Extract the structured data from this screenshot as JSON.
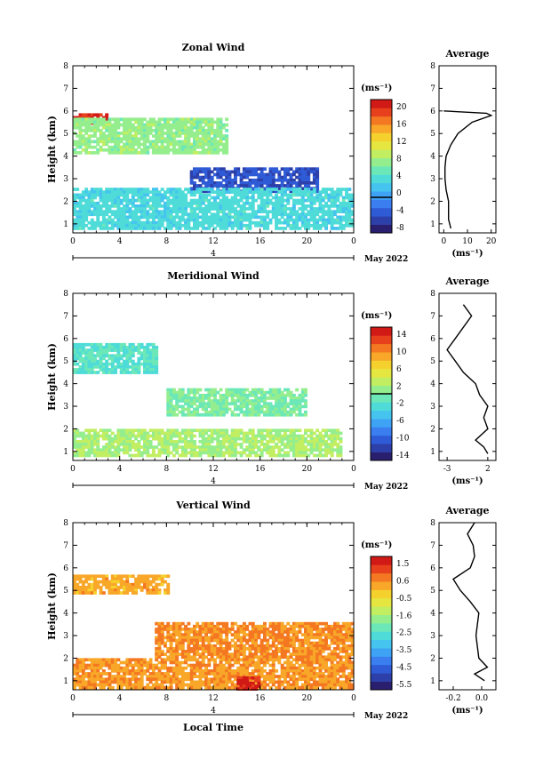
{
  "chart_data": [
    {
      "type": "heatmap",
      "title": "Zonal Wind",
      "ylabel": "Height (km)",
      "xlabel": "",
      "xlim": [
        0,
        24
      ],
      "ylim": [
        0.6,
        8
      ],
      "x_ticks": [
        "0",
        "4",
        "8",
        "12",
        "16",
        "20",
        "0"
      ],
      "y_ticks": [
        "1",
        "2",
        "3",
        "4",
        "5",
        "6",
        "7",
        "8"
      ],
      "date_axis": {
        "tick_label": "4",
        "label": "May 2022"
      },
      "colorbar": {
        "unit": "(ms⁻¹)",
        "min": -8,
        "max": 22,
        "zero_line": 0,
        "ticks": [
          "20",
          "16",
          "12",
          "8",
          "4",
          "0",
          "-4",
          "-8"
        ]
      },
      "regions": [
        {
          "x": [
            0,
            3
          ],
          "y": [
            5.5,
            5.9
          ],
          "value": 20
        },
        {
          "x": [
            0,
            13
          ],
          "y": [
            4.2,
            5.7
          ],
          "value": 8
        },
        {
          "x": [
            10,
            21
          ],
          "y": [
            2.5,
            3.5
          ],
          "value": -4
        },
        {
          "x": [
            0,
            24
          ],
          "y": [
            0.8,
            2.6
          ],
          "value": 4
        }
      ],
      "profile": {
        "title": "Average",
        "xlabel": "(ms⁻¹)",
        "x_ticks": [
          "0",
          "10",
          "20"
        ],
        "xlim": [
          -2,
          22
        ],
        "height": [
          0.8,
          1.2,
          1.6,
          2.0,
          2.5,
          3.0,
          3.5,
          4.0,
          4.5,
          5.0,
          5.5,
          5.8,
          5.9,
          6.0
        ],
        "value": [
          3,
          2,
          2,
          2,
          1,
          0.5,
          0.5,
          1,
          3,
          6,
          12,
          20,
          18,
          0
        ]
      }
    },
    {
      "type": "heatmap",
      "title": "Meridional Wind",
      "ylabel": "Height (km)",
      "xlabel": "",
      "xlim": [
        0,
        24
      ],
      "ylim": [
        0.6,
        8
      ],
      "x_ticks": [
        "0",
        "4",
        "8",
        "12",
        "16",
        "20",
        "0"
      ],
      "y_ticks": [
        "1",
        "2",
        "3",
        "4",
        "5",
        "6",
        "7",
        "8"
      ],
      "date_axis": {
        "tick_label": "4",
        "label": "May 2022"
      },
      "colorbar": {
        "unit": "(ms⁻¹)",
        "min": -16,
        "max": 16,
        "zero_line": 0,
        "ticks": [
          "14",
          "10",
          "6",
          "2",
          "-2",
          "-6",
          "-10",
          "-14"
        ]
      },
      "regions": [
        {
          "x": [
            0,
            7
          ],
          "y": [
            4.5,
            5.8
          ],
          "value": -2
        },
        {
          "x": [
            8,
            20
          ],
          "y": [
            2.6,
            3.8
          ],
          "value": 0
        },
        {
          "x": [
            0,
            23
          ],
          "y": [
            0.8,
            2.0
          ],
          "value": 2
        }
      ],
      "profile": {
        "title": "Average",
        "xlabel": "(ms⁻¹)",
        "x_ticks": [
          "-3",
          "2"
        ],
        "xlim": [
          -4,
          3
        ],
        "height": [
          0.9,
          1.2,
          1.5,
          2.0,
          2.5,
          3.0,
          3.5,
          4.0,
          4.5,
          5.0,
          5.5,
          6.0,
          7.0,
          7.5
        ],
        "value": [
          2,
          1.5,
          0.5,
          2,
          1.5,
          2,
          1,
          0.5,
          -1,
          -2,
          -3,
          -2,
          0,
          -1
        ]
      }
    },
    {
      "type": "heatmap",
      "title": "Vertical Wind",
      "ylabel": "Height (km)",
      "xlabel": "Local Time",
      "xlim": [
        0,
        24
      ],
      "ylim": [
        0.6,
        8
      ],
      "x_ticks": [
        "0",
        "4",
        "8",
        "12",
        "16",
        "20",
        "0"
      ],
      "y_ticks": [
        "1",
        "2",
        "3",
        "4",
        "5",
        "6",
        "7",
        "8"
      ],
      "date_axis": {
        "tick_label": "4",
        "label": "May 2022"
      },
      "colorbar": {
        "unit": "(ms⁻¹)",
        "min": -6.1,
        "max": 2.0,
        "ticks": [
          "1.5",
          "0.6",
          "-0.5",
          "-1.6",
          "-2.5",
          "-3.5",
          "-4.5",
          "-5.5"
        ]
      },
      "regions": [
        {
          "x": [
            0,
            8
          ],
          "y": [
            4.9,
            5.7
          ],
          "value": 0.2
        },
        {
          "x": [
            7,
            24
          ],
          "y": [
            2.0,
            3.6
          ],
          "value": 0.5
        },
        {
          "x": [
            0,
            24
          ],
          "y": [
            0.7,
            2.0
          ],
          "value": 0.4
        },
        {
          "x": [
            14,
            16
          ],
          "y": [
            0.7,
            1.2
          ],
          "value": 1.7
        }
      ],
      "profile": {
        "title": "Average",
        "xlabel": "(ms⁻¹)",
        "x_ticks": [
          "-0.2",
          "0.0"
        ],
        "xlim": [
          -0.3,
          0.1
        ],
        "height": [
          1.0,
          1.3,
          1.6,
          2.0,
          2.5,
          3.0,
          3.5,
          4.0,
          4.5,
          5.0,
          5.5,
          6.0,
          6.5,
          7.0,
          7.5,
          8.0
        ],
        "value": [
          0.02,
          -0.05,
          0.04,
          -0.02,
          -0.03,
          -0.04,
          -0.03,
          -0.02,
          -0.08,
          -0.15,
          -0.2,
          -0.08,
          -0.05,
          -0.06,
          -0.1,
          -0.05
        ]
      }
    }
  ]
}
